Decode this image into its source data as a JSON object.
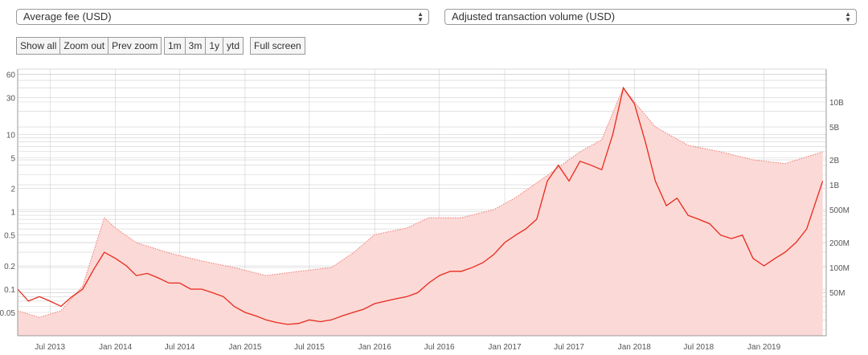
{
  "controls": {
    "left_select": "Average fee (USD)",
    "right_select": "Adjusted transaction volume (USD)",
    "zoom_buttons": [
      "Show all",
      "Zoom out",
      "Prev zoom"
    ],
    "range_buttons": [
      "1m",
      "3m",
      "1y",
      "ytd"
    ],
    "full_screen": "Full screen"
  },
  "colors": {
    "fee_line": "#e8291c",
    "volume_fill": "#fbd9d6",
    "volume_line": "#f07a6e",
    "grid": "#d0d0d0",
    "axis_text": "#555555"
  },
  "chart_data": {
    "type": "line",
    "x_ticks": [
      "Jul 2013",
      "Jan 2014",
      "Jul 2014",
      "Jan 2015",
      "Jul 2015",
      "Jan 2016",
      "Jul 2016",
      "Jan 2017",
      "Jul 2017",
      "Jan 2018",
      "Jul 2018",
      "Jan 2019"
    ],
    "xlim": [
      "2013-04-01",
      "2019-06-25"
    ],
    "y_left": {
      "label": "Average fee (USD)",
      "scale": "log",
      "range": [
        0.025,
        70
      ],
      "ticks": [
        0.05,
        0.1,
        0.2,
        0.5,
        1,
        2,
        5,
        10,
        30,
        60
      ]
    },
    "y_right": {
      "label": "Adjusted transaction volume (USD)",
      "scale": "log",
      "range": [
        15000000,
        25000000000
      ],
      "ticks": [
        "50M",
        "100M",
        "200M",
        "500M",
        "1B",
        "2B",
        "5B",
        "10B"
      ],
      "tick_values": [
        50000000,
        100000000,
        200000000,
        500000000,
        1000000000,
        2000000000,
        5000000000,
        10000000000
      ]
    },
    "series": [
      {
        "name": "Average fee (USD)",
        "axis": "left",
        "style": "solid",
        "points": [
          [
            "2013-04-01",
            0.1
          ],
          [
            "2013-05-01",
            0.07
          ],
          [
            "2013-06-01",
            0.08
          ],
          [
            "2013-07-01",
            0.07
          ],
          [
            "2013-08-01",
            0.06
          ],
          [
            "2013-09-01",
            0.08
          ],
          [
            "2013-10-01",
            0.1
          ],
          [
            "2013-11-01",
            0.18
          ],
          [
            "2013-12-01",
            0.3
          ],
          [
            "2014-01-01",
            0.25
          ],
          [
            "2014-02-01",
            0.2
          ],
          [
            "2014-03-01",
            0.15
          ],
          [
            "2014-04-01",
            0.16
          ],
          [
            "2014-05-01",
            0.14
          ],
          [
            "2014-06-01",
            0.12
          ],
          [
            "2014-07-01",
            0.12
          ],
          [
            "2014-08-01",
            0.1
          ],
          [
            "2014-09-01",
            0.1
          ],
          [
            "2014-10-01",
            0.09
          ],
          [
            "2014-11-01",
            0.08
          ],
          [
            "2014-12-01",
            0.06
          ],
          [
            "2015-01-01",
            0.05
          ],
          [
            "2015-02-01",
            0.045
          ],
          [
            "2015-03-01",
            0.04
          ],
          [
            "2015-04-01",
            0.037
          ],
          [
            "2015-05-01",
            0.035
          ],
          [
            "2015-06-01",
            0.036
          ],
          [
            "2015-07-01",
            0.04
          ],
          [
            "2015-08-01",
            0.038
          ],
          [
            "2015-09-01",
            0.04
          ],
          [
            "2015-10-01",
            0.045
          ],
          [
            "2015-11-01",
            0.05
          ],
          [
            "2015-12-01",
            0.055
          ],
          [
            "2016-01-01",
            0.065
          ],
          [
            "2016-02-01",
            0.07
          ],
          [
            "2016-03-01",
            0.075
          ],
          [
            "2016-04-01",
            0.08
          ],
          [
            "2016-05-01",
            0.09
          ],
          [
            "2016-06-01",
            0.12
          ],
          [
            "2016-07-01",
            0.15
          ],
          [
            "2016-08-01",
            0.17
          ],
          [
            "2016-09-01",
            0.17
          ],
          [
            "2016-10-01",
            0.19
          ],
          [
            "2016-11-01",
            0.22
          ],
          [
            "2016-12-01",
            0.28
          ],
          [
            "2017-01-01",
            0.4
          ],
          [
            "2017-02-01",
            0.5
          ],
          [
            "2017-03-01",
            0.6
          ],
          [
            "2017-04-01",
            0.8
          ],
          [
            "2017-05-01",
            2.5
          ],
          [
            "2017-06-01",
            4.0
          ],
          [
            "2017-07-01",
            2.5
          ],
          [
            "2017-08-01",
            4.5
          ],
          [
            "2017-09-01",
            4.0
          ],
          [
            "2017-10-01",
            3.5
          ],
          [
            "2017-11-01",
            10.0
          ],
          [
            "2017-12-01",
            40.0
          ],
          [
            "2018-01-01",
            25.0
          ],
          [
            "2018-02-01",
            8.0
          ],
          [
            "2018-03-01",
            2.5
          ],
          [
            "2018-04-01",
            1.2
          ],
          [
            "2018-05-01",
            1.5
          ],
          [
            "2018-06-01",
            0.9
          ],
          [
            "2018-07-01",
            0.8
          ],
          [
            "2018-08-01",
            0.7
          ],
          [
            "2018-09-01",
            0.5
          ],
          [
            "2018-10-01",
            0.45
          ],
          [
            "2018-11-01",
            0.5
          ],
          [
            "2018-12-01",
            0.25
          ],
          [
            "2019-01-01",
            0.2
          ],
          [
            "2019-02-01",
            0.25
          ],
          [
            "2019-03-01",
            0.3
          ],
          [
            "2019-04-01",
            0.4
          ],
          [
            "2019-05-01",
            0.6
          ],
          [
            "2019-06-15",
            2.5
          ]
        ]
      },
      {
        "name": "Adjusted transaction volume (USD)",
        "axis": "right",
        "style": "dotted-area",
        "points": [
          [
            "2013-04-01",
            30000000
          ],
          [
            "2013-06-01",
            25000000
          ],
          [
            "2013-08-01",
            30000000
          ],
          [
            "2013-10-01",
            60000000
          ],
          [
            "2013-12-01",
            400000000
          ],
          [
            "2014-01-01",
            300000000
          ],
          [
            "2014-03-01",
            200000000
          ],
          [
            "2014-06-01",
            150000000
          ],
          [
            "2014-09-01",
            120000000
          ],
          [
            "2014-12-01",
            100000000
          ],
          [
            "2015-03-01",
            80000000
          ],
          [
            "2015-06-01",
            90000000
          ],
          [
            "2015-09-01",
            100000000
          ],
          [
            "2015-11-01",
            150000000
          ],
          [
            "2016-01-01",
            250000000
          ],
          [
            "2016-04-01",
            300000000
          ],
          [
            "2016-06-01",
            400000000
          ],
          [
            "2016-09-01",
            400000000
          ],
          [
            "2016-12-01",
            500000000
          ],
          [
            "2017-02-01",
            700000000
          ],
          [
            "2017-05-01",
            1300000000
          ],
          [
            "2017-08-01",
            2500000000
          ],
          [
            "2017-10-01",
            3500000000
          ],
          [
            "2017-12-01",
            15000000000
          ],
          [
            "2018-01-01",
            10000000000
          ],
          [
            "2018-03-01",
            5000000000
          ],
          [
            "2018-06-01",
            3000000000
          ],
          [
            "2018-09-01",
            2500000000
          ],
          [
            "2018-12-01",
            2000000000
          ],
          [
            "2019-03-01",
            1800000000
          ],
          [
            "2019-06-15",
            2500000000
          ]
        ]
      }
    ]
  }
}
